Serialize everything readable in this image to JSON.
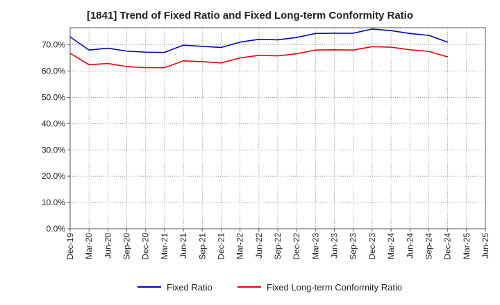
{
  "chart_data": {
    "type": "line",
    "title": "[1841]  Trend of Fixed Ratio and Fixed Long-term Conformity Ratio",
    "xlabel": "",
    "ylabel": "",
    "x_ticks": [
      "Dec-19",
      "Mar-20",
      "Jun-20",
      "Sep-20",
      "Dec-20",
      "Mar-21",
      "Jun-21",
      "Sep-21",
      "Dec-21",
      "Mar-22",
      "Jun-22",
      "Sep-22",
      "Dec-22",
      "Mar-23",
      "Jun-23",
      "Sep-23",
      "Dec-23",
      "Mar-24",
      "Jun-24",
      "Sep-24",
      "Dec-24",
      "Mar-25",
      "Jun-25"
    ],
    "y_ticks": [
      "0.0%",
      "10.0%",
      "20.0%",
      "30.0%",
      "40.0%",
      "50.0%",
      "60.0%",
      "70.0%"
    ],
    "ylim": [
      0,
      76.5
    ],
    "grid": true,
    "legend_position": "bottom",
    "x": [
      "Dec-19",
      "Mar-20",
      "Jun-20",
      "Sep-20",
      "Dec-20",
      "Mar-21",
      "Jun-21",
      "Sep-21",
      "Dec-21",
      "Mar-22",
      "Jun-22",
      "Sep-22",
      "Dec-22",
      "Mar-23",
      "Jun-23",
      "Sep-23",
      "Dec-23",
      "Mar-24",
      "Jun-24",
      "Sep-24",
      "Dec-24"
    ],
    "series": [
      {
        "name": "Fixed Ratio",
        "color": "#0000cc",
        "values": [
          73.0,
          68.0,
          68.7,
          67.6,
          67.2,
          67.1,
          69.9,
          69.4,
          69.0,
          71.0,
          72.1,
          71.9,
          72.8,
          74.3,
          74.4,
          74.4,
          76.0,
          75.4,
          74.3,
          73.6,
          71.0
        ]
      },
      {
        "name": "Fixed Long-term Conformity Ratio",
        "color": "#ee0000",
        "values": [
          66.8,
          62.4,
          62.9,
          61.7,
          61.3,
          61.3,
          63.9,
          63.6,
          63.1,
          65.0,
          66.0,
          65.8,
          66.6,
          68.0,
          68.1,
          68.0,
          69.3,
          69.1,
          68.1,
          67.5,
          65.4
        ]
      }
    ]
  }
}
